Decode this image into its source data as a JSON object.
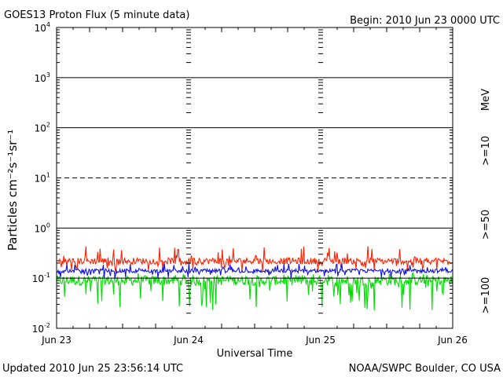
{
  "chart_data": {
    "type": "line",
    "title": "GOES13 Proton Flux (5 minute data)",
    "begin_label": "Begin: 2010 Jun 23 0000 UTC",
    "xlabel": "Universal Time",
    "ylabel": "Particles cm⁻²s⁻¹sr⁻¹",
    "y_scale": "log",
    "ylim": [
      0.01,
      10000
    ],
    "y_ticks": [
      {
        "base": "10",
        "exp": "4"
      },
      {
        "base": "10",
        "exp": "3"
      },
      {
        "base": "10",
        "exp": "2"
      },
      {
        "base": "10",
        "exp": "1"
      },
      {
        "base": "10",
        "exp": "0"
      },
      {
        "base": "10",
        "exp": "-1"
      },
      {
        "base": "10",
        "exp": "-2"
      }
    ],
    "x_ticks": [
      "Jun 23",
      "Jun 24",
      "Jun 25",
      "Jun 26"
    ],
    "xlim": [
      "2010-06-23 00:00",
      "2010-06-26 00:00"
    ],
    "grid": {
      "horizontal": true,
      "dashed_at": [
        10
      ],
      "vertical_day_marks": true
    },
    "units_label": "MeV",
    "series": [
      {
        "name": ">=10",
        "color": "#ff2000",
        "typical": 0.22,
        "low": 0.14,
        "high": 0.45
      },
      {
        "name": ">=50",
        "color": "#1010e0",
        "typical": 0.14,
        "low": 0.1,
        "high": 0.2
      },
      {
        "name": ">=100",
        "color": "#00dd00",
        "typical": 0.09,
        "low": 0.022,
        "high": 0.13
      }
    ]
  },
  "footer": {
    "updated": "Updated 2010 Jun 25 23:56:14 UTC",
    "source": "NOAA/SWPC Boulder, CO USA"
  }
}
